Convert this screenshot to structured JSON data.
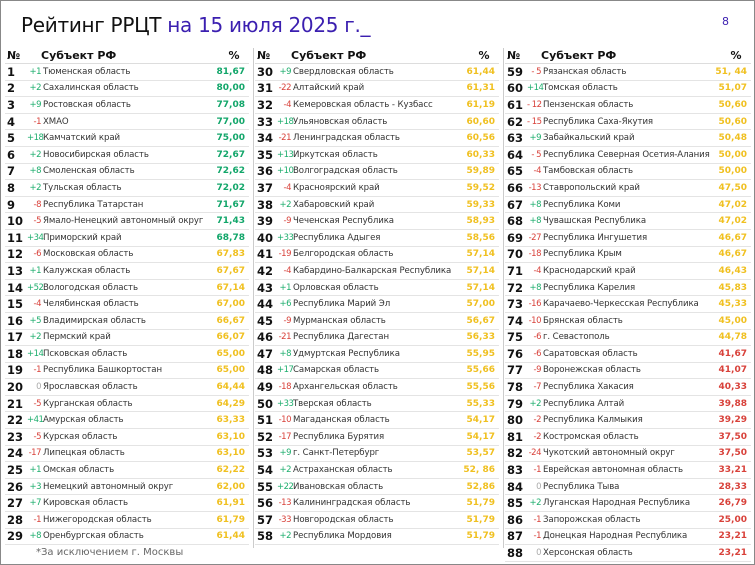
{
  "title": {
    "main": "Рейтинг РРЦТ ",
    "highlight": "на 15 июля 2025 г._"
  },
  "page_number": "8",
  "headers": {
    "num": "№",
    "subject": "Субъект РФ",
    "percent": "%"
  },
  "footnote": "*За исключением г. Москвы",
  "colors": {
    "up": "#1fae6e",
    "down": "#d8413a",
    "high": "#12a66a",
    "mid": "#f0c020",
    "low": "#d8413a"
  },
  "columns": [
    [
      [
        "1",
        "+1",
        "Тюменская область",
        "81,67"
      ],
      [
        "2",
        "+2",
        "Сахалинская область",
        "80,00"
      ],
      [
        "3",
        "+9",
        "Ростовская область",
        "77,08"
      ],
      [
        "4",
        "-1",
        "ХМАО",
        "77,00"
      ],
      [
        "5",
        "+18",
        "Камчатский край",
        "75,00"
      ],
      [
        "6",
        "+2",
        "Новосибирская область",
        "72,67"
      ],
      [
        "7",
        "+8",
        "Смоленская область",
        "72,62"
      ],
      [
        "8",
        "+2",
        "Тульская область",
        "72,02"
      ],
      [
        "9",
        "-8",
        "Республика Татарстан",
        "71,67"
      ],
      [
        "10",
        "-5",
        "Ямало-Ненецкий автономный округ",
        "71,43"
      ],
      [
        "11",
        "+34",
        "Приморский край",
        "68,78"
      ],
      [
        "12",
        "-6",
        "Московская область",
        "67,83"
      ],
      [
        "13",
        "+1",
        "Калужская область",
        "67,67"
      ],
      [
        "14",
        "+52",
        "Вологодская область",
        "67,14"
      ],
      [
        "15",
        "-4",
        "Челябинская область",
        "67,00"
      ],
      [
        "16",
        "+5",
        "Владимирская область",
        "66,67"
      ],
      [
        "17",
        "+2",
        "Пермский край",
        "66,07"
      ],
      [
        "18",
        "+14",
        "Псковская область",
        "65,00"
      ],
      [
        "19",
        "-1",
        "Республика Башкортостан",
        "65,00"
      ],
      [
        "20",
        "0",
        "Ярославская область",
        "64,44"
      ],
      [
        "21",
        "-5",
        "Курганская область",
        "64,29"
      ],
      [
        "22",
        "+41",
        "Амурская область",
        "63,33"
      ],
      [
        "23",
        "-5",
        "Курская область",
        "63,10"
      ],
      [
        "24",
        "-17",
        "Липецкая область",
        "63,10"
      ],
      [
        "25",
        "+1",
        "Омская область",
        "62,22"
      ],
      [
        "26",
        "+3",
        "Немецкий автономный округ",
        "62,00"
      ],
      [
        "27",
        "+7",
        "Кировская область",
        "61,91"
      ],
      [
        "28",
        "-1",
        "Нижегородская область",
        "61,79"
      ],
      [
        "29",
        "+8",
        "Оренбургская область",
        "61,44"
      ]
    ],
    [
      [
        "30",
        "+9",
        "Свердловская область",
        "61,44"
      ],
      [
        "31",
        "-22",
        "Алтайский край",
        "61,31"
      ],
      [
        "32",
        "-4",
        "Кемеровская область - Кузбасс",
        "61,19"
      ],
      [
        "33",
        "+18",
        "Ульяновская область",
        "60,60"
      ],
      [
        "34",
        "-21",
        "Ленинградская область",
        "60,56"
      ],
      [
        "35",
        "+13",
        "Иркутская область",
        "60,33"
      ],
      [
        "36",
        "+10",
        "Волгоградская область",
        "59,89"
      ],
      [
        "37",
        "-4",
        "Красноярский край",
        "59,52"
      ],
      [
        "38",
        "+2",
        "Хабаровский край",
        "59,33"
      ],
      [
        "39",
        "-9",
        "Чеченская Республика",
        "58,93"
      ],
      [
        "40",
        "+33",
        "Республика Адыгея",
        "58,56"
      ],
      [
        "41",
        "-19",
        "Белгородская область",
        "57,14"
      ],
      [
        "42",
        "-4",
        "Кабардино-Балкарская Республика",
        "57,14"
      ],
      [
        "43",
        "+1",
        "Орловская область",
        "57,14"
      ],
      [
        "44",
        "+6",
        "Республика Марий Эл",
        "57,00"
      ],
      [
        "45",
        "-9",
        "Мурманская область",
        "56,67"
      ],
      [
        "46",
        "-21",
        "Республика Дагестан",
        "56,33"
      ],
      [
        "47",
        "+8",
        "Удмуртская Республика",
        "55,95"
      ],
      [
        "48",
        "+17",
        "Самарская область",
        "55,66"
      ],
      [
        "49",
        "-18",
        "Архангельская область",
        "55,56"
      ],
      [
        "50",
        "+33",
        "Тверская область",
        "55,33"
      ],
      [
        "51",
        "-10",
        "Магаданская область",
        "54,17"
      ],
      [
        "52",
        "-17",
        "Республика Бурятия",
        "54,17"
      ],
      [
        "53",
        "+9",
        "г. Санкт-Петербург",
        "53,57"
      ],
      [
        "54",
        "+2",
        "Астраханская область",
        "52, 86"
      ],
      [
        "55",
        "+22",
        "Ивановская область",
        "52,86"
      ],
      [
        "56",
        "-13",
        "Калининградская область",
        "51,79"
      ],
      [
        "57",
        "-33",
        "Новгородская область",
        "51,79"
      ],
      [
        "58",
        "+2",
        "Республика Мордовия",
        "51,79"
      ]
    ],
    [
      [
        "59",
        "- 5",
        "Рязанская область",
        "51, 44"
      ],
      [
        "60",
        "+14",
        "Томская область",
        "51,07"
      ],
      [
        "61",
        "- 12",
        "Пензенская область",
        "50,60"
      ],
      [
        "62",
        "- 15",
        "Республика Саха-Якутия",
        "50,60"
      ],
      [
        "63",
        "+9",
        "Забайкальский край",
        "50,48"
      ],
      [
        "64",
        "- 5",
        "Республика Северная Осетия-Алания",
        "50,00"
      ],
      [
        "65",
        "-4",
        "Тамбовская область",
        "50,00"
      ],
      [
        "66",
        "-13",
        "Ставропольский край",
        "47,50"
      ],
      [
        "67",
        "+8",
        "Республика Коми",
        "47,02"
      ],
      [
        "68",
        "+8",
        "Чувашская Республика",
        "47,02"
      ],
      [
        "69",
        "-27",
        "Республика Ингушетия",
        "46,67"
      ],
      [
        "70",
        "-18",
        "Республика Крым",
        "46,67"
      ],
      [
        "71",
        "-4",
        "Краснодарский край",
        "46,43"
      ],
      [
        "72",
        "+8",
        "Республика Карелия",
        "45,83"
      ],
      [
        "73",
        "-16",
        "Карачаево-Черкесская Республика",
        "45,33"
      ],
      [
        "74",
        "-10",
        "Брянская область",
        "45,00"
      ],
      [
        "75",
        "-6",
        "г. Севастополь",
        "44,78"
      ],
      [
        "76",
        "-6",
        "Саратовская область",
        "41,67"
      ],
      [
        "77",
        "-9",
        "Воронежская область",
        "41,07"
      ],
      [
        "78",
        "-7",
        "Республика Хакасия",
        "40,33"
      ],
      [
        "79",
        "+2",
        "Республика Алтай",
        "39,88"
      ],
      [
        "80",
        "-2",
        "Республика Калмыкия",
        "39,29"
      ],
      [
        "81",
        "-2",
        "Костромская область",
        "37,50"
      ],
      [
        "82",
        "-24",
        "Чукотский автономный округ",
        "37,50"
      ],
      [
        "83",
        "-1",
        "Еврейская автономная область",
        "33,21"
      ],
      [
        "84",
        "0",
        "Республика Тыва",
        "28,33"
      ],
      [
        "85",
        "+2",
        "Луганская Народная Республика",
        "26,79"
      ],
      [
        "86",
        "-1",
        "Запорожская область",
        "25,00"
      ],
      [
        "87",
        "-1",
        "Донецкая Народная Республика",
        "23,21"
      ],
      [
        "88",
        "0",
        "Херсонская область",
        "23,21"
      ]
    ]
  ]
}
